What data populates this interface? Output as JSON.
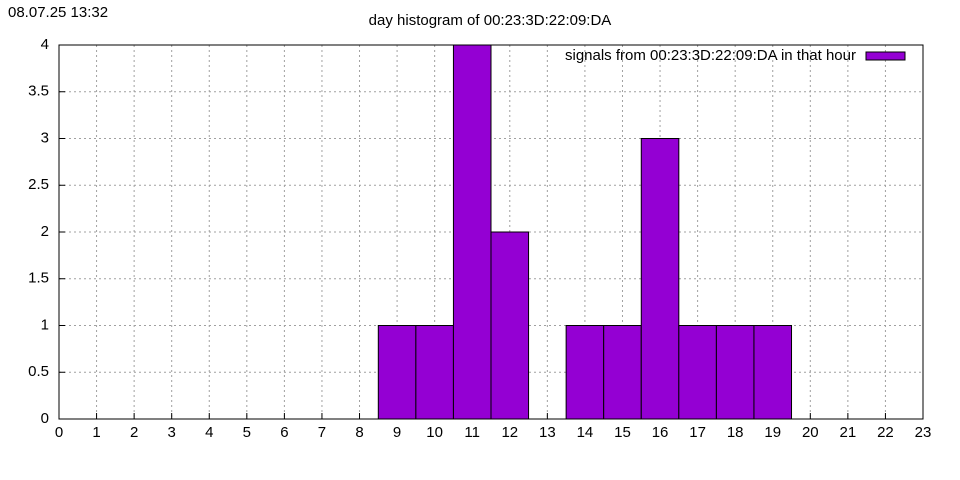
{
  "timestamp": "08.07.25 13:32",
  "chart_data": {
    "type": "histogram",
    "title": "day histogram of 00:23:3D:22:09:DA",
    "x": [
      9,
      10,
      11,
      12,
      14,
      15,
      16,
      17,
      18,
      19
    ],
    "series": [
      {
        "name": "signals from 00:23:3D:22:09:DA in that hour",
        "color": "#9400d3",
        "values": [
          1,
          1,
          4,
          2,
          1,
          1,
          3,
          1,
          1,
          1
        ]
      }
    ],
    "xlim": [
      0,
      23
    ],
    "xticks": [
      0,
      1,
      2,
      3,
      4,
      5,
      6,
      7,
      8,
      9,
      10,
      11,
      12,
      13,
      14,
      15,
      16,
      17,
      18,
      19,
      20,
      21,
      22,
      23
    ],
    "ylim": [
      0,
      4
    ],
    "yticks": [
      0,
      0.5,
      1,
      1.5,
      2,
      2.5,
      3,
      3.5,
      4
    ],
    "grid": true,
    "legend": "top-right"
  }
}
